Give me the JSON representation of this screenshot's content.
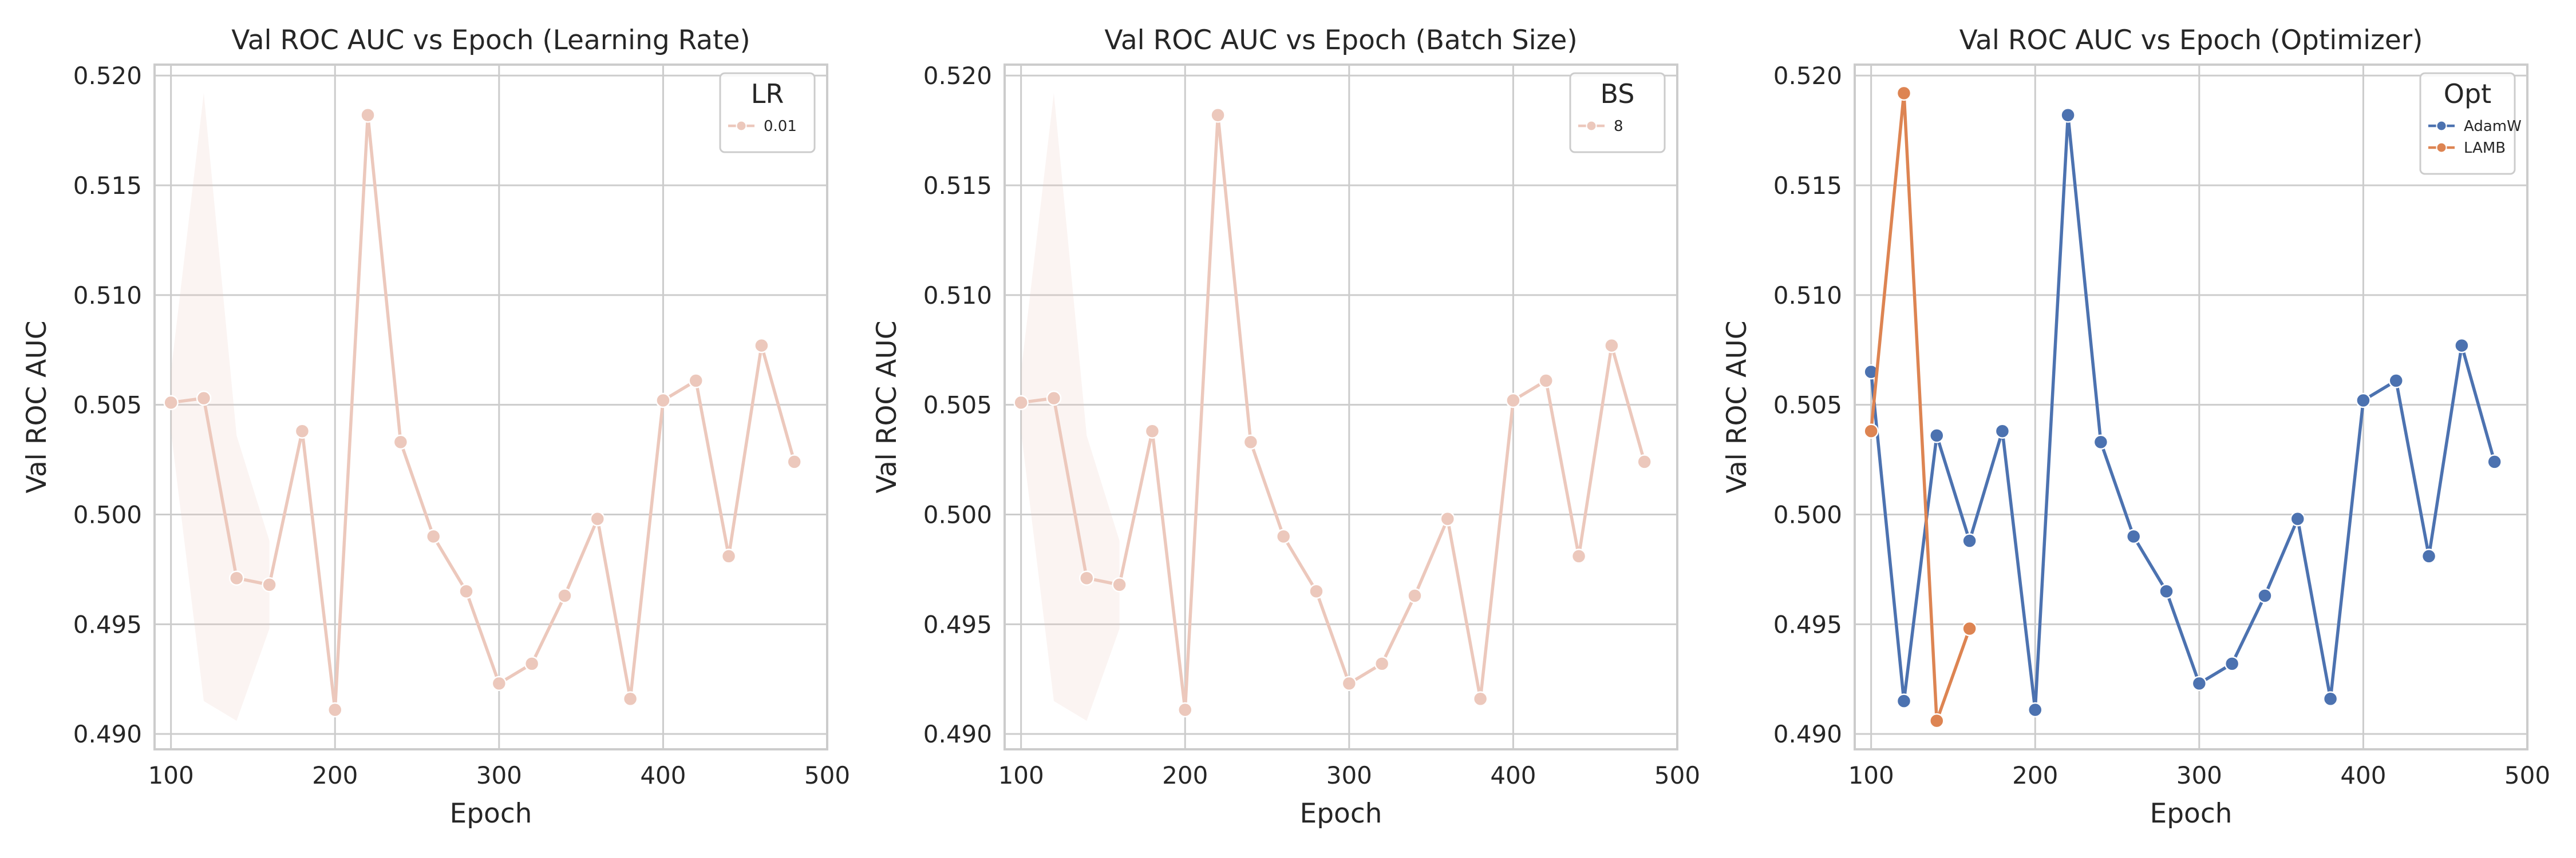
{
  "chart_data": [
    {
      "type": "line",
      "title": "Val ROC AUC vs Epoch (Learning Rate)",
      "xlabel": "Epoch",
      "ylabel": "Val ROC AUC",
      "xlim": [
        90,
        500
      ],
      "ylim": [
        0.4893,
        0.5205
      ],
      "xticks": [
        100,
        200,
        300,
        400,
        500
      ],
      "yticks": [
        0.49,
        0.495,
        0.5,
        0.505,
        0.51,
        0.515,
        0.52
      ],
      "grid": true,
      "legend": {
        "title": "LR",
        "position": "top-right"
      },
      "series": [
        {
          "name": "0.01",
          "color": "#ecc8bc",
          "x": [
            100,
            120,
            140,
            160,
            180,
            200,
            220,
            240,
            260,
            280,
            300,
            320,
            340,
            360,
            380,
            400,
            420,
            440,
            460,
            480
          ],
          "y": [
            0.5051,
            0.5053,
            0.4971,
            0.4968,
            0.5038,
            0.4911,
            0.5182,
            0.5033,
            0.499,
            0.4965,
            0.4923,
            0.4932,
            0.4963,
            0.4998,
            0.4916,
            0.5052,
            0.5061,
            0.4981,
            0.5077,
            0.5024
          ],
          "band": {
            "x": [
              100,
              120,
              140,
              160
            ],
            "lower": [
              0.5038,
              0.4915,
              0.4906,
              0.4948
            ],
            "upper": [
              0.5065,
              0.5192,
              0.5036,
              0.4988
            ]
          }
        }
      ]
    },
    {
      "type": "line",
      "title": "Val ROC AUC vs Epoch (Batch Size)",
      "xlabel": "Epoch",
      "ylabel": "Val ROC AUC",
      "xlim": [
        90,
        500
      ],
      "ylim": [
        0.4893,
        0.5205
      ],
      "xticks": [
        100,
        200,
        300,
        400,
        500
      ],
      "yticks": [
        0.49,
        0.495,
        0.5,
        0.505,
        0.51,
        0.515,
        0.52
      ],
      "grid": true,
      "legend": {
        "title": "BS",
        "position": "top-right"
      },
      "series": [
        {
          "name": "8",
          "color": "#ecc8bc",
          "x": [
            100,
            120,
            140,
            160,
            180,
            200,
            220,
            240,
            260,
            280,
            300,
            320,
            340,
            360,
            380,
            400,
            420,
            440,
            460,
            480
          ],
          "y": [
            0.5051,
            0.5053,
            0.4971,
            0.4968,
            0.5038,
            0.4911,
            0.5182,
            0.5033,
            0.499,
            0.4965,
            0.4923,
            0.4932,
            0.4963,
            0.4998,
            0.4916,
            0.5052,
            0.5061,
            0.4981,
            0.5077,
            0.5024
          ],
          "band": {
            "x": [
              100,
              120,
              140,
              160
            ],
            "lower": [
              0.5038,
              0.4915,
              0.4906,
              0.4948
            ],
            "upper": [
              0.5065,
              0.5192,
              0.5036,
              0.4988
            ]
          }
        }
      ]
    },
    {
      "type": "line",
      "title": "Val ROC AUC vs Epoch (Optimizer)",
      "xlabel": "Epoch",
      "ylabel": "Val ROC AUC",
      "xlim": [
        90,
        500
      ],
      "ylim": [
        0.4893,
        0.5205
      ],
      "xticks": [
        100,
        200,
        300,
        400,
        500
      ],
      "yticks": [
        0.49,
        0.495,
        0.5,
        0.505,
        0.51,
        0.515,
        0.52
      ],
      "grid": true,
      "legend": {
        "title": "Opt",
        "position": "top-right"
      },
      "series": [
        {
          "name": "AdamW",
          "color": "#4c72b0",
          "x": [
            100,
            120,
            140,
            160,
            180,
            200,
            220,
            240,
            260,
            280,
            300,
            320,
            340,
            360,
            380,
            400,
            420,
            440,
            460,
            480
          ],
          "y": [
            0.5065,
            0.4915,
            0.5036,
            0.4988,
            0.5038,
            0.4911,
            0.5182,
            0.5033,
            0.499,
            0.4965,
            0.4923,
            0.4932,
            0.4963,
            0.4998,
            0.4916,
            0.5052,
            0.5061,
            0.4981,
            0.5077,
            0.5024
          ]
        },
        {
          "name": "LAMB",
          "color": "#dd8452",
          "x": [
            100,
            120,
            140,
            160
          ],
          "y": [
            0.5038,
            0.5192,
            0.4906,
            0.4948
          ]
        }
      ]
    }
  ]
}
